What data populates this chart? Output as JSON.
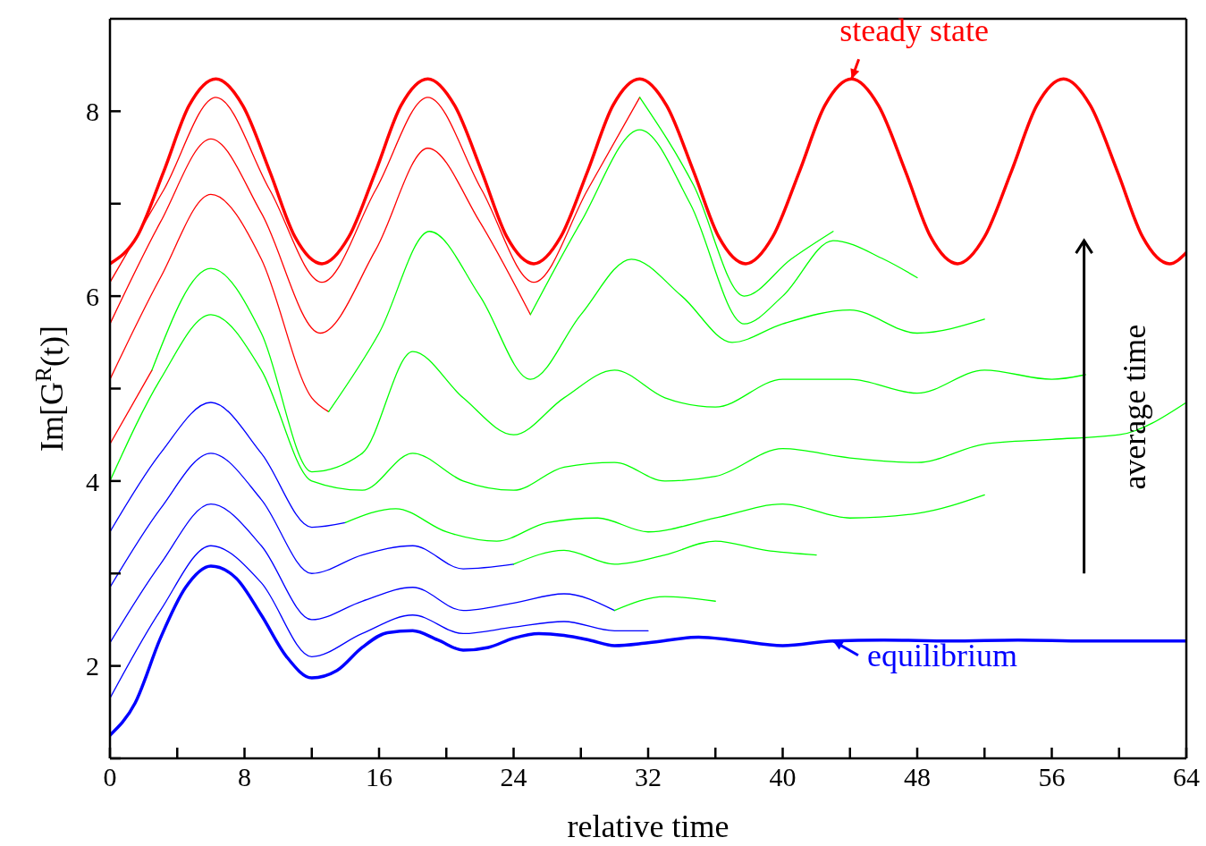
{
  "chart_data": {
    "type": "line",
    "xlabel": "relative time",
    "ylabel": "Im[G$^{R}$(t)]",
    "xlim": [
      0,
      64
    ],
    "ylim": [
      1,
      9
    ],
    "xticks": [
      0,
      {
        "value": 4,
        "label": null
      },
      8,
      {
        "value": 12,
        "label": null
      },
      16,
      {
        "value": 20,
        "label": null
      },
      24,
      {
        "value": 28,
        "label": null
      },
      32,
      {
        "value": 36,
        "label": null
      },
      40,
      {
        "value": 44,
        "label": null
      },
      48,
      {
        "value": 52,
        "label": null
      },
      56,
      {
        "value": 60,
        "label": null
      },
      64
    ],
    "yticks": [
      {
        "value": 1,
        "label": null
      },
      2,
      {
        "value": 3,
        "label": null
      },
      4,
      {
        "value": 5,
        "label": null
      },
      6,
      {
        "value": 7,
        "label": null
      },
      8
    ],
    "annotations": [
      "average time"
    ],
    "series": [
      {
        "color": "#0000ff",
        "x": [
          0,
          3,
          6,
          9,
          12,
          15,
          18,
          21,
          24,
          27,
          30,
          32
        ],
        "values": [
          1.65,
          2.6,
          3.3,
          2.9,
          2.1,
          2.35,
          2.55,
          2.35,
          2.42,
          2.48,
          2.38,
          2.38
        ]
      },
      {
        "color": "#0000ff",
        "x": [
          0,
          3,
          6,
          9,
          12,
          15,
          18,
          21,
          24,
          27,
          30
        ],
        "values": [
          2.25,
          3.1,
          3.75,
          3.3,
          2.5,
          2.7,
          2.85,
          2.6,
          2.68,
          2.78,
          2.6
        ]
      },
      {
        "color": "#00ff00",
        "x": [
          30,
          33,
          36
        ],
        "values": [
          2.6,
          2.75,
          2.7
        ]
      },
      {
        "color": "#0000ff",
        "x": [
          0,
          3,
          6,
          9,
          12,
          15,
          18,
          21,
          24
        ],
        "values": [
          2.85,
          3.7,
          4.3,
          3.8,
          3.0,
          3.2,
          3.3,
          3.05,
          3.1
        ]
      },
      {
        "color": "#00ff00",
        "x": [
          24,
          27,
          30,
          33,
          36,
          39,
          42
        ],
        "values": [
          3.1,
          3.25,
          3.1,
          3.2,
          3.35,
          3.25,
          3.2
        ]
      },
      {
        "color": "#0000ff",
        "x": [
          0,
          3,
          6,
          9,
          12,
          14
        ],
        "values": [
          3.45,
          4.3,
          4.85,
          4.3,
          3.5,
          3.55
        ]
      },
      {
        "color": "#00ff00",
        "x": [
          14,
          17,
          20,
          23,
          26,
          29,
          32,
          36,
          40,
          44,
          48,
          52
        ],
        "values": [
          3.55,
          3.7,
          3.45,
          3.35,
          3.55,
          3.6,
          3.45,
          3.6,
          3.75,
          3.6,
          3.65,
          3.85
        ]
      },
      {
        "color": "#00ff00",
        "x": [
          0,
          3,
          6,
          9,
          12,
          15,
          18,
          21,
          24,
          27,
          30,
          33,
          36,
          40,
          44,
          48,
          52,
          56,
          60,
          64
        ],
        "values": [
          4.0,
          5.1,
          5.8,
          5.2,
          4.0,
          3.9,
          4.3,
          4.0,
          3.9,
          4.15,
          4.2,
          4.0,
          4.05,
          4.35,
          4.25,
          4.2,
          4.4,
          4.45,
          4.5,
          4.85
        ]
      },
      {
        "color": "#ff0000",
        "x": [
          0,
          2.5
        ],
        "values": [
          4.4,
          5.2
        ]
      },
      {
        "color": "#00ff00",
        "x": [
          2.5,
          6,
          9,
          12,
          15,
          18,
          21,
          24,
          27,
          30,
          33,
          36,
          40,
          44,
          48,
          52,
          56,
          58
        ],
        "values": [
          5.2,
          6.3,
          5.6,
          4.1,
          4.3,
          5.4,
          4.9,
          4.5,
          4.9,
          5.2,
          4.9,
          4.8,
          5.1,
          5.1,
          4.95,
          5.2,
          5.1,
          5.15
        ]
      },
      {
        "color": "#ff0000",
        "x": [
          0,
          3,
          6,
          9,
          12,
          13
        ],
        "values": [
          5.1,
          6.2,
          7.1,
          6.4,
          4.9,
          4.75
        ]
      },
      {
        "color": "#00ff00",
        "x": [
          13,
          16,
          19,
          22,
          25,
          28,
          31,
          34,
          37,
          40,
          44,
          48,
          52
        ],
        "values": [
          4.75,
          5.6,
          6.7,
          6.0,
          5.1,
          5.8,
          6.4,
          6.0,
          5.5,
          5.7,
          5.85,
          5.6,
          5.75
        ]
      },
      {
        "color": "#ff0000",
        "x": [
          0,
          3,
          6,
          9,
          12.5,
          15.8,
          18.9,
          22,
          25
        ],
        "values": [
          5.7,
          6.8,
          7.7,
          6.9,
          5.6,
          6.5,
          7.6,
          6.8,
          5.8
        ]
      },
      {
        "color": "#00ff00",
        "x": [
          25,
          28,
          31.5,
          34.5,
          37.7,
          40,
          43,
          46,
          48
        ],
        "values": [
          5.8,
          6.8,
          7.8,
          7.0,
          5.7,
          6.0,
          6.6,
          6.4,
          6.2
        ]
      },
      {
        "color": "#ff0000",
        "x": [
          0,
          3.2,
          6.3,
          9.5,
          12.6,
          15.8,
          18.9,
          22.1,
          25.2,
          28.4,
          31.5
        ],
        "values": [
          6.15,
          7.15,
          8.15,
          7.15,
          6.15,
          7.15,
          8.15,
          7.15,
          6.15,
          7.15,
          8.15
        ]
      },
      {
        "color": "#00ff00",
        "x": [
          31.5,
          34.7,
          37.7,
          40.5,
          43
        ],
        "values": [
          8.15,
          7.2,
          6.0,
          6.4,
          6.7
        ]
      },
      {
        "name": "steady state",
        "color": "#ff0000",
        "x": [
          0,
          1.6,
          3.2,
          4.7,
          6.3,
          7.9,
          9.5,
          11,
          12.6,
          14.2,
          15.8,
          17.3,
          18.9,
          20.5,
          22.1,
          23.6,
          25.2,
          26.8,
          28.4,
          29.9,
          31.5,
          33.1,
          34.7,
          36.2,
          37.8,
          39.4,
          41,
          42.5,
          44.1,
          45.7,
          47.3,
          48.8,
          50.4,
          52,
          53.6,
          55.1,
          56.7,
          58.3,
          59.9,
          61.4,
          63,
          64
        ],
        "values": [
          6.35,
          6.64,
          7.35,
          8.06,
          8.35,
          8.06,
          7.35,
          6.64,
          6.35,
          6.64,
          7.35,
          8.06,
          8.35,
          8.06,
          7.35,
          6.64,
          6.35,
          6.64,
          7.35,
          8.06,
          8.35,
          8.06,
          7.35,
          6.64,
          6.35,
          6.64,
          7.35,
          8.06,
          8.35,
          8.06,
          7.35,
          6.64,
          6.35,
          6.64,
          7.35,
          8.06,
          8.35,
          8.06,
          7.35,
          6.64,
          6.35,
          6.47
        ]
      },
      {
        "name": "equilibrium",
        "color": "#0000ff",
        "x": [
          0,
          1.5,
          3,
          4.5,
          6,
          7.5,
          9,
          10.5,
          12,
          13.5,
          15,
          16.5,
          18,
          19.5,
          21,
          22.5,
          24,
          25.5,
          27,
          28.5,
          30,
          32,
          35,
          37,
          40,
          43,
          46,
          50,
          54,
          58,
          64
        ],
        "values": [
          1.25,
          1.6,
          2.3,
          2.85,
          3.08,
          2.95,
          2.55,
          2.1,
          1.87,
          1.95,
          2.2,
          2.36,
          2.38,
          2.28,
          2.17,
          2.2,
          2.3,
          2.35,
          2.33,
          2.28,
          2.22,
          2.25,
          2.31,
          2.28,
          2.22,
          2.27,
          2.28,
          2.27,
          2.28,
          2.27,
          2.27
        ]
      }
    ]
  }
}
